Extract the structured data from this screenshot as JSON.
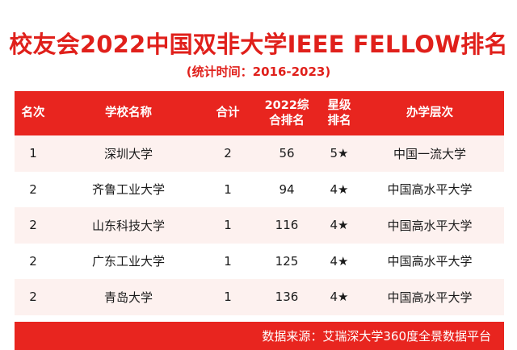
{
  "title": "校友会2022中国双非大学IEEE FELLOW排名",
  "subtitle": "(统计时间：2016-2023)",
  "headers": {
    "rank": "名次",
    "school": "学校名称",
    "total": "合计",
    "rank2022_line1": "2022综",
    "rank2022_line2": "合排名",
    "star_line1": "星级",
    "star_line2": "排名",
    "level": "办学层次"
  },
  "rows": [
    {
      "rank": "1",
      "school": "深圳大学",
      "total": "2",
      "rank2022": "56",
      "star": "5★",
      "level": "中国一流大学"
    },
    {
      "rank": "2",
      "school": "齐鲁工业大学",
      "total": "1",
      "rank2022": "94",
      "star": "4★",
      "level": "中国高水平大学"
    },
    {
      "rank": "2",
      "school": "山东科技大学",
      "total": "1",
      "rank2022": "116",
      "star": "4★",
      "level": "中国高水平大学"
    },
    {
      "rank": "2",
      "school": "广东工业大学",
      "total": "1",
      "rank2022": "125",
      "star": "4★",
      "level": "中国高水平大学"
    },
    {
      "rank": "2",
      "school": "青岛大学",
      "total": "1",
      "rank2022": "136",
      "star": "4★",
      "level": "中国高水平大学"
    }
  ],
  "footer": "数据来源：艾瑞深大学360度全景数据平台",
  "colors": {
    "accent": "#e8251f",
    "title": "#e0201b",
    "row_shade": "#fdf1ef"
  }
}
